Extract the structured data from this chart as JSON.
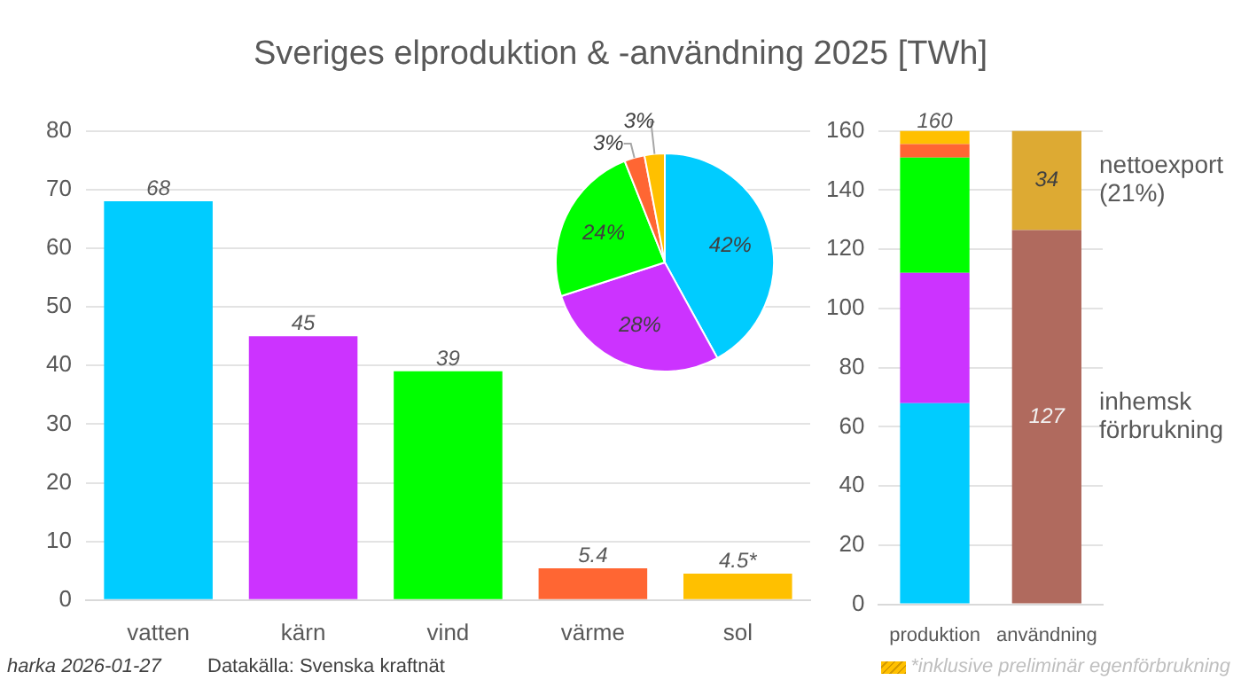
{
  "chart_data": [
    {
      "type": "bar",
      "title": "Sveriges elproduktion & -användning 2025 [TWh]",
      "categories": [
        "vatten",
        "kärn",
        "vind",
        "värme",
        "sol"
      ],
      "values": [
        68,
        45,
        39,
        5.4,
        4.5
      ],
      "colors": [
        "#00ccff",
        "#cc33ff",
        "#00ff00",
        "#ff6633",
        "#ffc000"
      ],
      "value_labels": [
        "68",
        "45",
        "39",
        "5.4",
        "4.5*"
      ],
      "ylim": [
        0,
        80
      ],
      "yticks": [
        0,
        10,
        20,
        30,
        40,
        50,
        60,
        70,
        80
      ],
      "grid": "y",
      "annotations": [
        "harka 2026-01-27",
        "Datakälla: Svenska kraftnät",
        "*inklusive preliminär egenförbrukning"
      ]
    },
    {
      "type": "pie",
      "categories": [
        null,
        null,
        null,
        null,
        null
      ],
      "values": [
        42,
        28,
        24,
        3,
        3
      ],
      "colors": [
        "#00ccff",
        "#cc33ff",
        "#00ff00",
        "#ff6633",
        "#ffc000"
      ],
      "value_labels": [
        "42%",
        "28%",
        "24%",
        "3%",
        "3%"
      ]
    },
    {
      "type": "bar",
      "stacked": true,
      "categories": [
        "produktion",
        "användning"
      ],
      "ylim": [
        0,
        160
      ],
      "yticks": [
        0,
        20,
        40,
        60,
        80,
        100,
        120,
        140,
        160
      ],
      "grid": "y",
      "totals": [
        "160",
        null
      ],
      "series": [
        {
          "color": "#00ccff",
          "values": [
            68,
            null
          ]
        },
        {
          "color": "#cc33ff",
          "values": [
            44,
            null
          ]
        },
        {
          "color": "#00ff00",
          "values": [
            39,
            null
          ]
        },
        {
          "color": "#ff6633",
          "values": [
            4.5,
            null
          ]
        },
        {
          "color": "#ffc000",
          "values": [
            4.5,
            null
          ]
        },
        {
          "name": "inhemsk förbrukning",
          "color": "#b06a5e",
          "values": [
            null,
            126.5
          ],
          "value_labels": [
            null,
            "127"
          ]
        },
        {
          "name": "nettoexport (21%)",
          "color": "#ddaa33",
          "values": [
            null,
            33.5
          ],
          "value_labels": [
            null,
            "34"
          ]
        }
      ]
    }
  ]
}
